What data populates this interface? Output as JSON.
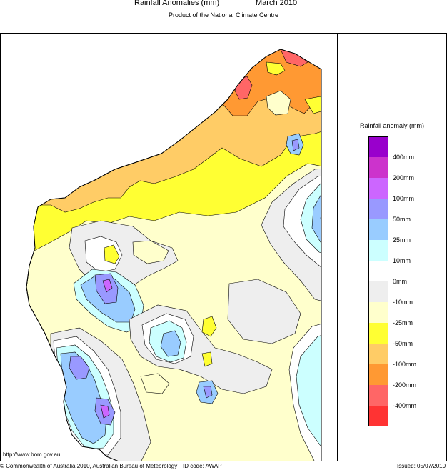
{
  "header": {
    "title": "Rainfall Anomalies (mm)",
    "period": "March 2010",
    "subtitle": "Product of the National Climate Centre"
  },
  "legend": {
    "title": "Rainfall anomaly (mm)",
    "items": [
      {
        "label": "400mm",
        "color": "#9900cc"
      },
      {
        "label": "200mm",
        "color": "#cc33cc"
      },
      {
        "label": "100mm",
        "color": "#cc66ff"
      },
      {
        "label": "50mm",
        "color": "#9999ff"
      },
      {
        "label": "25mm",
        "color": "#99ccff"
      },
      {
        "label": "10mm",
        "color": "#ccffff"
      },
      {
        "label": "0mm",
        "color": "#ffffff"
      },
      {
        "label": "-10mm",
        "color": "#eeeeee"
      },
      {
        "label": "-25mm",
        "color": "#ffffcc"
      },
      {
        "label": "-50mm",
        "color": "#ffff33"
      },
      {
        "label": "-100mm",
        "color": "#ffcc66"
      },
      {
        "label": "-200mm",
        "color": "#ff9933"
      },
      {
        "label": "-400mm",
        "color": "#ff6666"
      },
      {
        "label": "",
        "color": "#ff3333"
      }
    ]
  },
  "footer": {
    "url": "http://www.bom.gov.au",
    "copyright": "© Commonwealth of Australia 2010, Australian Bureau of Meteorology",
    "id_code": "ID code: AWAP",
    "issued": "Issued: 05/07/2010"
  }
}
